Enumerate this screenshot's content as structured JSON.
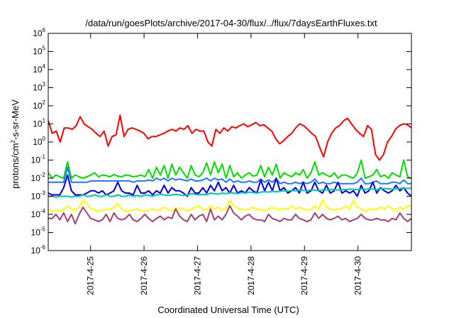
{
  "chart_data": {
    "type": "line",
    "title": "/data/run/goesPlots/archive/2017-04-30/flux/../flux/7daysEarthFluxes.txt",
    "xlabel": "Coordinated Universal Time (UTC)",
    "ylabel_parts": [
      "protons/cm",
      "2",
      "-s-sr-MeV"
    ],
    "y_scale": "log",
    "ylim": [
      1e-06,
      1000000.0
    ],
    "y_ticks": [
      {
        "base": "10",
        "exp": "-6"
      },
      {
        "base": "10",
        "exp": "-5"
      },
      {
        "base": "10",
        "exp": "-4"
      },
      {
        "base": "10",
        "exp": "-3"
      },
      {
        "base": "10",
        "exp": "-2"
      },
      {
        "base": "10",
        "exp": "-1"
      },
      {
        "base": "10",
        "exp": "0"
      },
      {
        "base": "10",
        "exp": "1"
      },
      {
        "base": "10",
        "exp": "2"
      },
      {
        "base": "10",
        "exp": "3"
      },
      {
        "base": "10",
        "exp": "4"
      },
      {
        "base": "10",
        "exp": "5"
      },
      {
        "base": "10",
        "exp": "6"
      }
    ],
    "xlim_days": [
      "2017-04-24 05:00",
      "2017-04-31 00:00"
    ],
    "x_ticks": [
      "2017-4-25",
      "2017-4-26",
      "2017-4-27",
      "2017-4-28",
      "2017-4-29",
      "2017-4-30"
    ],
    "grid": false,
    "series": [
      {
        "color": "#ff0000",
        "values": [
          15,
          3,
          4,
          1,
          6,
          6,
          5,
          8,
          25,
          10,
          7,
          5,
          3,
          2,
          4,
          0.6,
          2,
          2.5,
          30,
          2,
          5,
          6,
          5,
          4,
          3,
          1.5,
          2,
          2,
          2.5,
          3,
          4,
          5,
          4,
          6,
          5,
          8,
          3,
          5,
          4,
          4,
          1,
          0.6,
          5,
          3,
          6,
          4,
          7,
          6,
          8,
          10,
          7,
          9,
          12,
          8,
          9,
          6,
          4,
          1.5,
          0.8,
          1.2,
          2,
          3,
          6,
          10,
          8,
          5,
          3,
          2,
          0.5,
          0.15,
          1,
          3,
          6,
          8,
          15,
          20,
          10,
          5,
          3,
          2,
          8,
          5,
          0.2,
          0.1,
          0.2,
          1,
          2,
          5,
          8,
          10,
          9,
          6
        ]
      },
      {
        "color": "#00e000",
        "values": [
          0.02,
          0.01,
          0.015,
          0.012,
          0.01,
          0.08,
          0.01,
          0.015,
          0.012,
          0.01,
          0.012,
          0.015,
          0.02,
          0.012,
          0.015,
          0.014,
          0.012,
          0.016,
          0.013,
          0.012,
          0.015,
          0.014,
          0.012,
          0.013,
          0.015,
          0.012,
          0.03,
          0.01,
          0.04,
          0.015,
          0.05,
          0.01,
          0.06,
          0.015,
          0.04,
          0.02,
          0.01,
          0.05,
          0.015,
          0.012,
          0.02,
          0.07,
          0.015,
          0.08,
          0.02,
          0.06,
          0.01,
          0.05,
          0.012,
          0.02,
          0.01,
          0.015,
          0.02,
          0.013,
          0.015,
          0.05,
          0.012,
          0.04,
          0.015,
          0.06,
          0.01,
          0.02,
          0.015,
          0.012,
          0.02,
          0.015,
          0.03,
          0.01,
          0.02,
          0.08,
          0.015,
          0.02,
          0.015,
          0.012,
          0.02,
          0.01,
          0.015,
          0.015,
          0.012,
          0.01,
          0.02,
          0.1,
          0.01,
          0.012,
          0.015,
          0.03,
          0.012,
          0.015,
          0.01,
          0.02,
          0.015,
          0.012,
          0.1,
          0.012,
          0.01
        ]
      },
      {
        "color": "#1e78ff",
        "values": [
          0.006,
          0.006,
          0.006,
          0.006,
          0.006,
          0.04,
          0.006,
          0.006,
          0.006,
          0.006,
          0.006,
          0.007,
          0.007,
          0.007,
          0.007,
          0.007,
          0.007,
          0.007,
          0.007,
          0.007,
          0.007,
          0.007,
          0.006,
          0.007,
          0.007,
          0.007,
          0.008,
          0.007,
          0.01,
          0.008,
          0.01,
          0.007,
          0.01,
          0.008,
          0.009,
          0.008,
          0.007,
          0.009,
          0.007,
          0.007,
          0.008,
          0.01,
          0.007,
          0.01,
          0.008,
          0.009,
          0.006,
          0.009,
          0.006,
          0.007,
          0.006,
          0.006,
          0.007,
          0.006,
          0.006,
          0.009,
          0.006,
          0.008,
          0.006,
          0.009,
          0.005,
          0.006,
          0.005,
          0.005,
          0.006,
          0.005,
          0.006,
          0.005,
          0.006,
          0.009,
          0.005,
          0.006,
          0.005,
          0.005,
          0.006,
          0.005,
          0.005,
          0.005,
          0.005,
          0.005,
          0.006,
          0.01,
          0.005,
          0.005,
          0.006,
          0.007,
          0.005,
          0.005,
          0.005,
          0.006,
          0.006,
          0.005,
          0.008,
          0.005,
          0.005
        ]
      },
      {
        "color": "#0000dd",
        "values": [
          0.0015,
          0.0012,
          0.0012,
          0.0012,
          0.003,
          0.015,
          0.002,
          0.0012,
          0.0012,
          0.0012,
          0.0015,
          0.002,
          0.002,
          0.0015,
          0.002,
          0.0012,
          0.0015,
          0.002,
          0.006,
          0.002,
          0.0015,
          0.0015,
          0.0012,
          0.004,
          0.0015,
          0.0015,
          0.002,
          0.0012,
          0.002,
          0.0015,
          0.004,
          0.0015,
          0.003,
          0.002,
          0.002,
          0.0015,
          0.001,
          0.003,
          0.0015,
          0.0015,
          0.003,
          0.0015,
          0.004,
          0.002,
          0.006,
          0.002,
          0.003,
          0.0015,
          0.004,
          0.0015,
          0.002,
          0.0015,
          0.003,
          0.002,
          0.0015,
          0.008,
          0.002,
          0.006,
          0.002,
          0.01,
          0.002,
          0.003,
          0.0015,
          0.002,
          0.003,
          0.0015,
          0.006,
          0.0015,
          0.002,
          0.006,
          0.002,
          0.0015,
          0.004,
          0.0015,
          0.002,
          0.006,
          0.0015,
          0.002,
          0.0015,
          0.002,
          0.001,
          0.004,
          0.0015,
          0.002,
          0.006,
          0.0015,
          0.003,
          0.002,
          0.0015,
          0.002,
          0.004,
          0.002,
          0.003,
          0.0015,
          0.001
        ]
      },
      {
        "color": "#00c8a0",
        "values": [
          0.001,
          0.001,
          0.0009,
          0.001,
          0.001,
          0.001,
          0.0009,
          0.001,
          0.001,
          0.0012,
          0.001,
          0.001,
          0.0012,
          0.001,
          0.001,
          0.0012,
          0.001,
          0.001,
          0.0012,
          0.001,
          0.001,
          0.0012,
          0.001,
          0.0011,
          0.001,
          0.0012,
          0.0011,
          0.001,
          0.0012,
          0.0013,
          0.0012,
          0.0011,
          0.0012,
          0.0013,
          0.0012,
          0.0011,
          0.0012,
          0.0014,
          0.0013,
          0.0012,
          0.0013,
          0.0012,
          0.0015,
          0.0014,
          0.0013,
          0.0015,
          0.0014,
          0.0016,
          0.0015,
          0.0014,
          0.0016,
          0.0015,
          0.0017,
          0.0016,
          0.0015,
          0.0017,
          0.0018,
          0.0017,
          0.0019,
          0.0018,
          0.0019,
          0.002,
          0.0019,
          0.0021,
          0.002,
          0.0022,
          0.0021,
          0.002,
          0.0023,
          0.0022,
          0.0021,
          0.0023,
          0.0022,
          0.0024,
          0.0023,
          0.0022,
          0.0024,
          0.0023,
          0.0025,
          0.0024,
          0.0023,
          0.0025,
          0.0024,
          0.0026,
          0.0025,
          0.0024,
          0.0026,
          0.0027,
          0.0026,
          0.0025,
          0.0026,
          0.0027,
          0.0028,
          0.0027,
          0.0028
        ]
      },
      {
        "color": "#ffff00",
        "values": [
          0.0002,
          0.00015,
          0.00018,
          0.00015,
          0.0002,
          0.0003,
          0.0002,
          0.00018,
          0.00025,
          0.0006,
          0.0004,
          0.0002,
          0.00018,
          0.00015,
          0.00017,
          0.0002,
          0.00018,
          0.00025,
          0.0004,
          0.0002,
          0.00015,
          0.00016,
          0.00018,
          0.0002,
          0.00016,
          0.00015,
          0.00018,
          0.0002,
          0.00017,
          0.00019,
          0.00025,
          0.0002,
          0.00015,
          0.0002,
          0.00022,
          0.0002,
          0.00016,
          0.0002,
          0.00025,
          0.0003,
          0.0002,
          0.00018,
          0.0003,
          0.0002,
          0.00025,
          0.00018,
          0.0002,
          0.0006,
          0.0003,
          0.00022,
          0.0002,
          0.00018,
          0.0002,
          0.00025,
          0.0002,
          0.00018,
          0.00016,
          0.0002,
          0.00025,
          0.0002,
          0.00018,
          0.00022,
          0.0002,
          0.0003,
          0.0002,
          0.00025,
          0.0002,
          0.00018,
          0.0002,
          0.0003,
          0.0002,
          0.0006,
          0.00025,
          0.0002,
          0.00018,
          0.0002,
          0.00022,
          0.0003,
          0.0002,
          0.0006,
          0.00025,
          0.0002,
          0.00015,
          0.0002,
          0.00018,
          0.0002,
          0.00025,
          0.0002,
          0.0003,
          0.0002,
          0.00018,
          0.00025,
          0.0002,
          0.0003,
          0.0003
        ]
      },
      {
        "color": "#a0406e",
        "values": [
          6e-05,
          6e-05,
          0.0001,
          5e-05,
          0.00012,
          4e-05,
          0.0001,
          3e-05,
          0.0001,
          0.00025,
          0.00012,
          6e-05,
          5e-05,
          4e-05,
          5e-05,
          0.0001,
          4e-05,
          0.00012,
          6e-05,
          5e-05,
          6e-05,
          0.0001,
          5e-05,
          4e-05,
          6e-05,
          0.0001,
          6e-05,
          4e-05,
          6e-05,
          8e-05,
          5e-05,
          7e-05,
          6e-05,
          0.0002,
          8e-05,
          5e-05,
          4e-05,
          0.0001,
          5e-05,
          8e-05,
          0.0001,
          4e-05,
          0.0002,
          5e-05,
          8e-05,
          5e-05,
          0.0001,
          0.0003,
          0.00012,
          8e-05,
          5e-05,
          8e-05,
          0.0001,
          6e-05,
          5e-05,
          5e-05,
          4e-05,
          0.0001,
          6e-05,
          5e-05,
          4e-05,
          6e-05,
          5e-05,
          5e-05,
          0.0001,
          6e-05,
          5e-05,
          4e-05,
          5e-05,
          0.00012,
          6e-05,
          0.0001,
          6e-05,
          5e-05,
          6e-05,
          8e-05,
          5e-05,
          6e-05,
          4e-05,
          5e-05,
          6e-05,
          0.0001,
          6e-05,
          5e-05,
          5e-05,
          6e-05,
          5e-05,
          5e-05,
          4e-05,
          6e-05,
          5e-05,
          0.00012,
          6e-05,
          4e-05,
          6e-05
        ]
      }
    ]
  }
}
